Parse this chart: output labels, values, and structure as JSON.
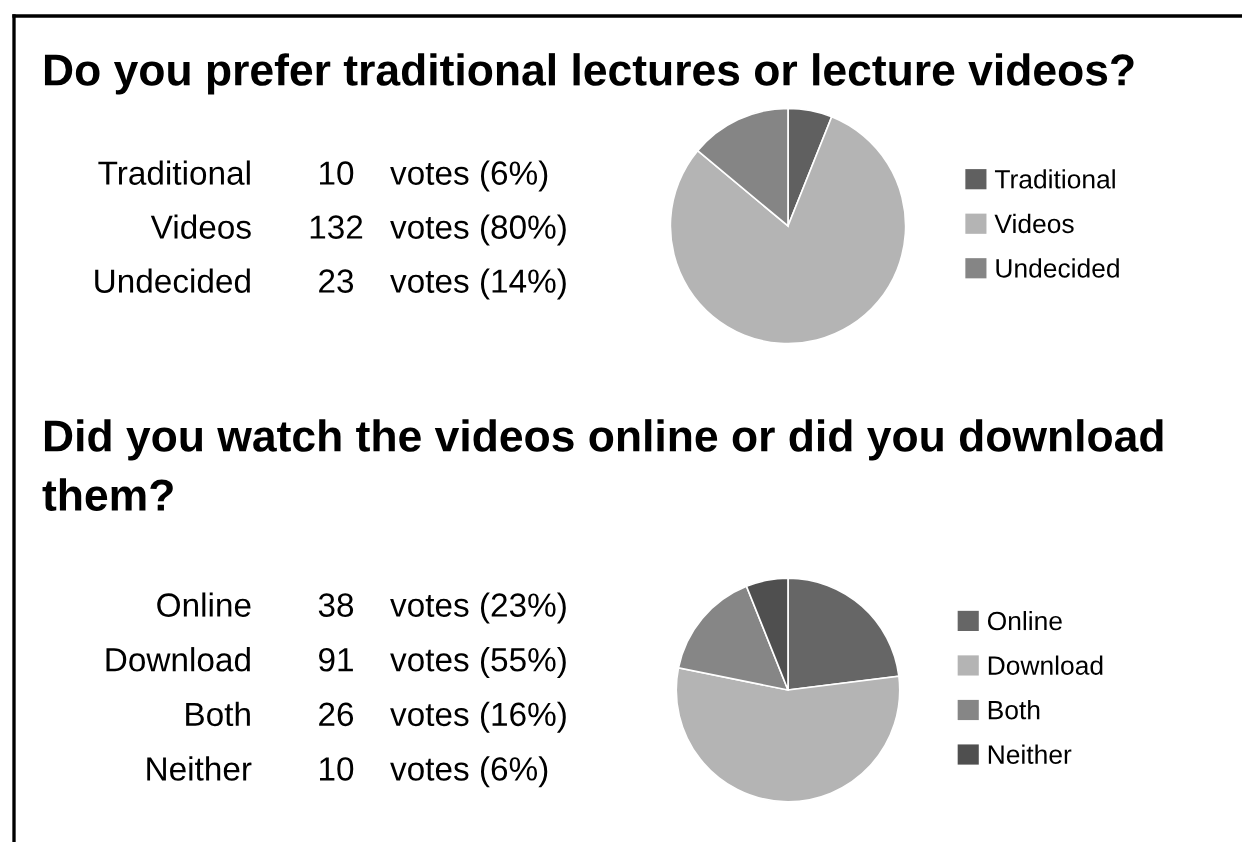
{
  "chart_data": [
    {
      "type": "pie",
      "title": "Do you prefer traditional lectures or lecture videos?",
      "categories": [
        "Traditional",
        "Videos",
        "Undecided"
      ],
      "values": [
        10,
        132,
        23
      ],
      "colors": [
        "#606060",
        "#b4b4b4",
        "#858585"
      ],
      "data_labels": true,
      "annotations": [
        "votes (6%)",
        "votes (80%)",
        "votes (14%)"
      ],
      "legend": "right"
    },
    {
      "type": "pie",
      "title": "Did you watch the videos online or did you download them?",
      "categories": [
        "Online",
        "Download",
        "Both",
        "Neither"
      ],
      "values": [
        38,
        91,
        26,
        10
      ],
      "colors": [
        "#666666",
        "#b4b4b4",
        "#868686",
        "#4f4f4f"
      ],
      "data_labels": true,
      "annotations": [
        "votes (23%)",
        "votes (55%)",
        "votes (16%)",
        "votes (6%)"
      ],
      "legend": "right"
    }
  ]
}
